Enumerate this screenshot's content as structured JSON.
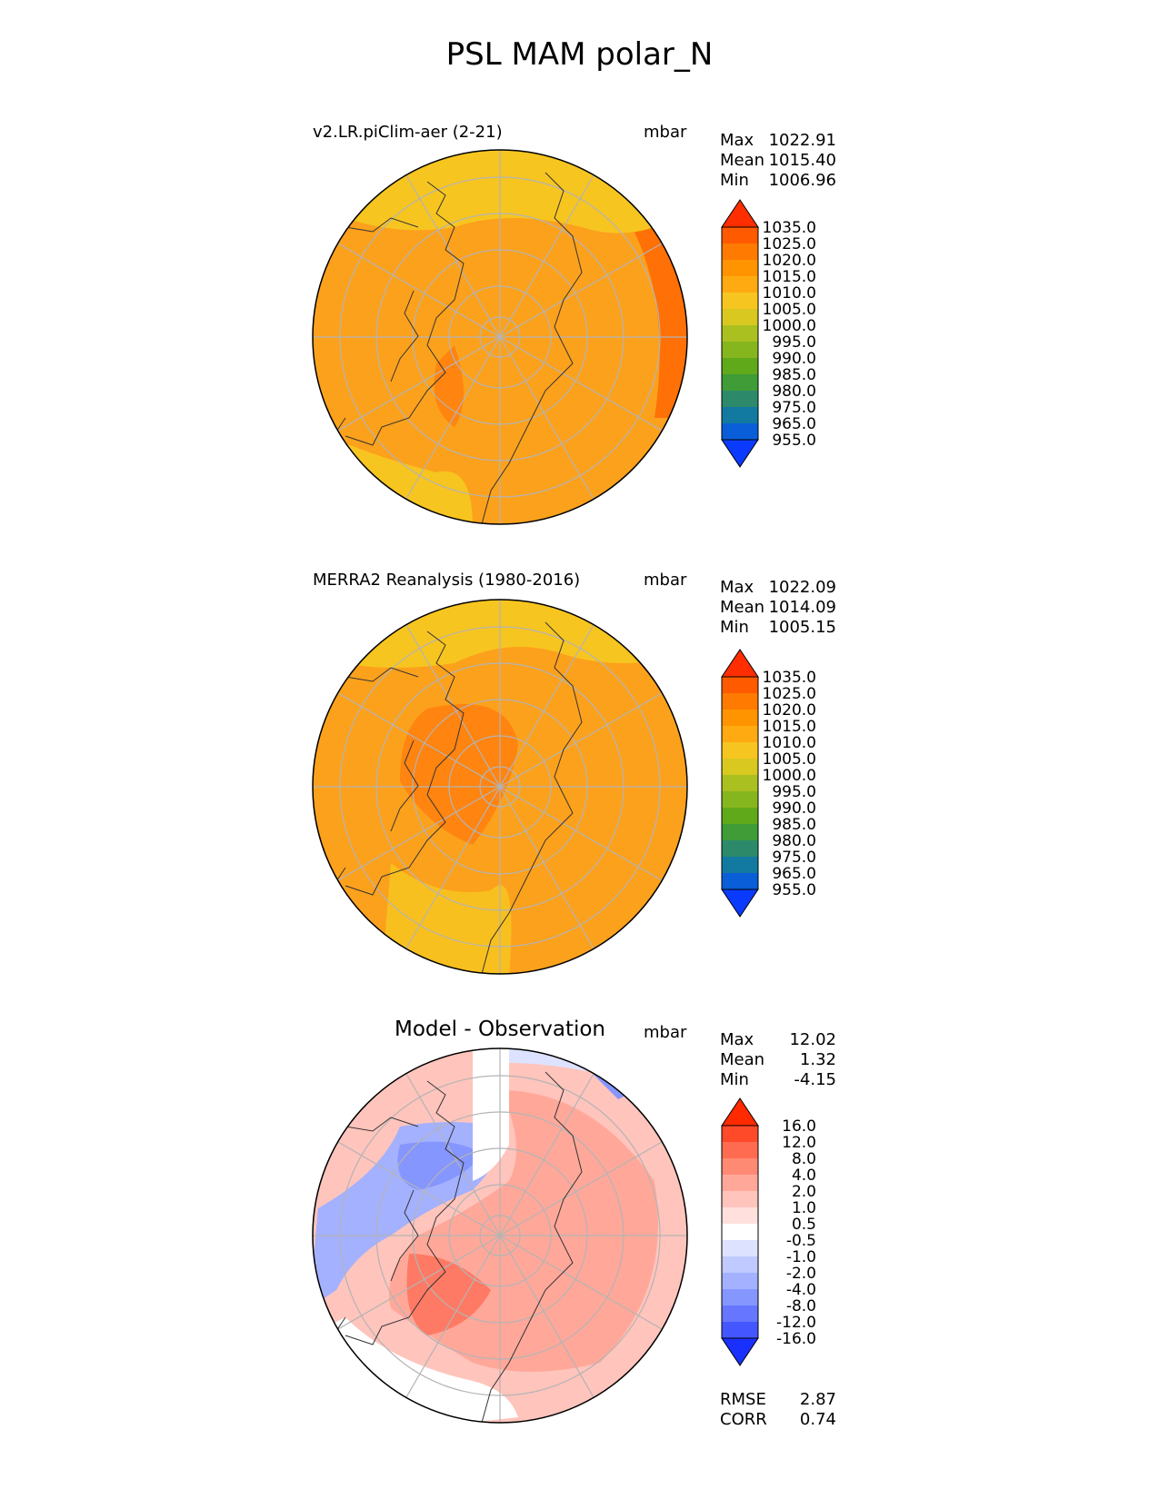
{
  "title": "PSL MAM polar_N",
  "panels": [
    {
      "id": "test",
      "title": "v2.LR.piClim-aer (2-21)",
      "units": "mbar",
      "stats": [
        {
          "label": "Max",
          "value": "1022.91"
        },
        {
          "label": "Mean",
          "value": "1015.40"
        },
        {
          "label": "Min",
          "value": "1006.96"
        }
      ],
      "colorbar": {
        "labels": [
          "1035.0",
          "1025.0",
          "1020.0",
          "1015.0",
          "1010.0",
          "1005.0",
          "1000.0",
          "995.0",
          "990.0",
          "985.0",
          "980.0",
          "975.0",
          "965.0",
          "955.0"
        ],
        "colors": [
          "#ff2e00",
          "#ff5a00",
          "#ff7a00",
          "#ff9400",
          "#ffaa10",
          "#f7c520",
          "#d8c820",
          "#aac020",
          "#86b61e",
          "#5fa91a",
          "#3f9c36",
          "#2c8a6a",
          "#127aa0",
          "#0a5ed8",
          "#0b3aff"
        ]
      }
    },
    {
      "id": "ref",
      "title": "MERRA2 Reanalysis (1980-2016)",
      "units": "mbar",
      "stats": [
        {
          "label": "Max",
          "value": "1022.09"
        },
        {
          "label": "Mean",
          "value": "1014.09"
        },
        {
          "label": "Min",
          "value": "1005.15"
        }
      ],
      "colorbar": {
        "labels": [
          "1035.0",
          "1025.0",
          "1020.0",
          "1015.0",
          "1010.0",
          "1005.0",
          "1000.0",
          "995.0",
          "990.0",
          "985.0",
          "980.0",
          "975.0",
          "965.0",
          "955.0"
        ],
        "colors": [
          "#ff2e00",
          "#ff5a00",
          "#ff7a00",
          "#ff9400",
          "#ffaa10",
          "#f7c520",
          "#d8c820",
          "#aac020",
          "#86b61e",
          "#5fa91a",
          "#3f9c36",
          "#2c8a6a",
          "#127aa0",
          "#0a5ed8",
          "#0b3aff"
        ]
      }
    },
    {
      "id": "diff",
      "title": "Model - Observation",
      "units": "mbar",
      "stats": [
        {
          "label": "Max",
          "value": "12.02"
        },
        {
          "label": "Mean",
          "value": "1.32"
        },
        {
          "label": "Min",
          "value": "-4.15"
        }
      ],
      "colorbar": {
        "labels": [
          "16.0",
          "12.0",
          "8.0",
          "4.0",
          "2.0",
          "1.0",
          "0.5",
          "-0.5",
          "-1.0",
          "-2.0",
          "-4.0",
          "-8.0",
          "-12.0",
          "-16.0"
        ],
        "colors": [
          "#ff2a00",
          "#ff4a2a",
          "#ff6b50",
          "#ff8a74",
          "#ffa89a",
          "#ffc4bc",
          "#ffe0dc",
          "#ffffff",
          "#dde3ff",
          "#c0caff",
          "#a3b1ff",
          "#8596ff",
          "#6676ff",
          "#4456ff",
          "#1a30ff"
        ]
      },
      "extra_stats": [
        {
          "label": "RMSE",
          "value": "2.87"
        },
        {
          "label": "CORR",
          "value": "0.74"
        }
      ]
    }
  ],
  "map_colors": {
    "test": {
      "base": "#fca11c",
      "light": "#f7c520",
      "dark": "#ff8410",
      "darker": "#ff7006"
    },
    "ref": {
      "base": "#fca11c",
      "light": "#f7c520",
      "dark": "#ff8410"
    },
    "diff": {
      "white": "#ffffff",
      "pink": "#ffc4bc",
      "salmon": "#ffa89a",
      "red": "#ff7a64",
      "lblue": "#dde3ff",
      "blue": "#a3b1ff",
      "dblue": "#8596ff"
    }
  }
}
